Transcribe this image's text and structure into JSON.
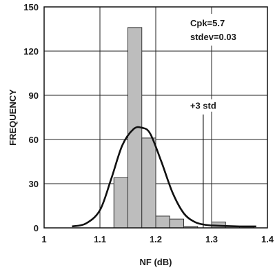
{
  "chart_data": {
    "type": "bar",
    "xlabel": "NF (dB)",
    "ylabel": "FREQUENCY",
    "xlim": [
      1.0,
      1.4
    ],
    "ylim": [
      0,
      150
    ],
    "x_ticks": [
      1,
      1.1,
      1.2,
      1.3,
      1.4
    ],
    "x_tick_labels": [
      "1",
      "1.1",
      "1.2",
      "1.3",
      "1.4"
    ],
    "y_ticks": [
      0,
      30,
      60,
      90,
      120,
      150
    ],
    "y_tick_labels": [
      "0",
      "30",
      "60",
      "90",
      "120",
      "150"
    ],
    "grid": true,
    "bins": [
      {
        "x0": 1.125,
        "x1": 1.15,
        "value": 34
      },
      {
        "x0": 1.15,
        "x1": 1.175,
        "value": 136
      },
      {
        "x0": 1.175,
        "x1": 1.2,
        "value": 61
      },
      {
        "x0": 1.2,
        "x1": 1.225,
        "value": 8
      },
      {
        "x0": 1.225,
        "x1": 1.25,
        "value": 6
      },
      {
        "x0": 1.25,
        "x1": 1.275,
        "value": 1
      },
      {
        "x0": 1.3,
        "x1": 1.325,
        "value": 4
      },
      {
        "x0": 1.325,
        "x1": 1.35,
        "value": 1
      },
      {
        "x0": 1.35,
        "x1": 1.375,
        "value": 1
      }
    ],
    "fit_curve": {
      "x": [
        1.05,
        1.075,
        1.1,
        1.12,
        1.14,
        1.16,
        1.175,
        1.19,
        1.21,
        1.23,
        1.25,
        1.27,
        1.29,
        1.31,
        1.35,
        1.38
      ],
      "y": [
        1,
        3,
        12,
        33,
        56,
        67,
        68,
        64,
        45,
        24,
        10,
        4,
        2,
        1.5,
        1,
        1
      ]
    },
    "reference_line": {
      "x": 1.285,
      "label": "+3 std",
      "y_top": 77
    },
    "annotations": [
      "Cpk=5.7",
      "stdev=0.03"
    ],
    "colors": {
      "bar_fill": "#bdbdbd",
      "bar_stroke": "#333333",
      "curve": "#111111",
      "grid": "#222222"
    }
  }
}
